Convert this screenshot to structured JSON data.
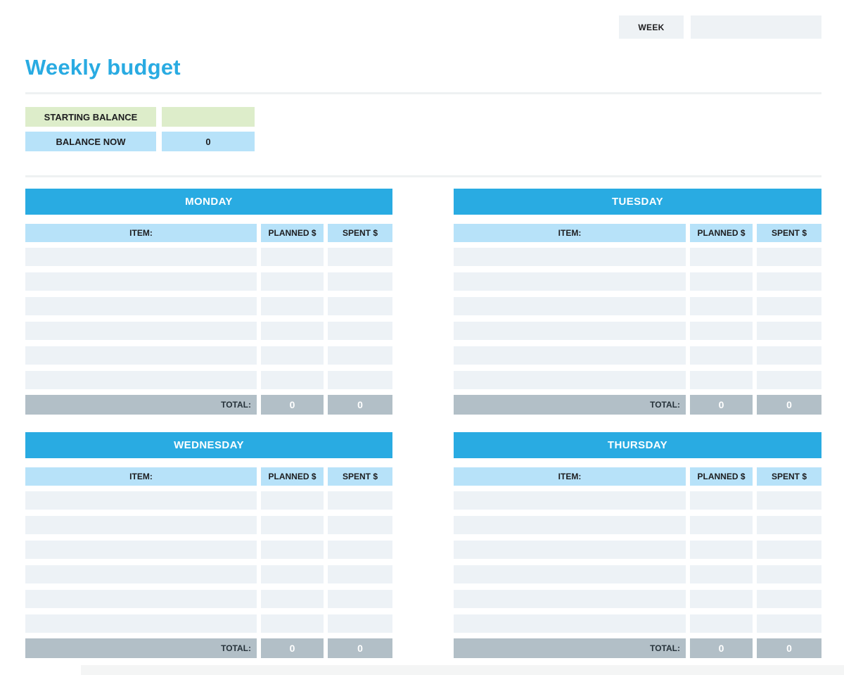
{
  "colors": {
    "accent_blue": "#29abe2",
    "light_blue": "#b7e2f9",
    "pale_row": "#edf2f6",
    "total_gray": "#b2bfc7",
    "light_green": "#ddedca",
    "box_gray": "#eef2f5"
  },
  "header": {
    "week_label": "WEEK",
    "week_value": ""
  },
  "title": "Weekly budget",
  "balance": {
    "starting_label": "STARTING BALANCE",
    "starting_value": "",
    "now_label": "BALANCE NOW",
    "now_value": "0"
  },
  "tables": {
    "columns": {
      "item": "ITEM:",
      "planned": "PLANNED $",
      "spent": "SPENT $"
    },
    "total_label": "TOTAL:",
    "empty_row_count": 6,
    "days": [
      {
        "name": "MONDAY",
        "planned_total": "0",
        "spent_total": "0"
      },
      {
        "name": "TUESDAY",
        "planned_total": "0",
        "spent_total": "0"
      },
      {
        "name": "WEDNESDAY",
        "planned_total": "0",
        "spent_total": "0"
      },
      {
        "name": "THURSDAY",
        "planned_total": "0",
        "spent_total": "0"
      }
    ]
  }
}
